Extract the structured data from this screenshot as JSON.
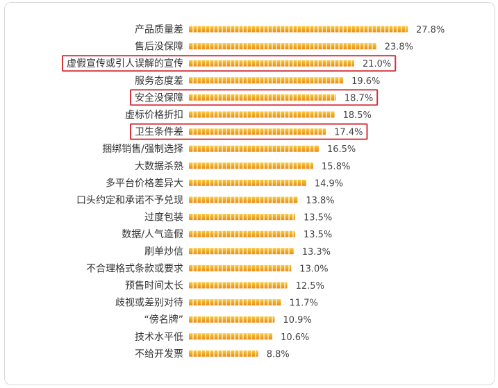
{
  "chart_data": {
    "type": "bar",
    "orientation": "horizontal",
    "title": "",
    "xlabel": "",
    "ylabel": "",
    "value_format": "percent",
    "xlim": [
      0,
      27.8
    ],
    "grid": false,
    "legend": "none",
    "categories": [
      "产品质量差",
      "售后没保障",
      "虚假宣传或引人误解的宣传",
      "服务态度差",
      "安全没保障",
      "虚标价格折扣",
      "卫生条件差",
      "捆绑销售/强制选择",
      "大数据杀熟",
      "多平台价格差异大",
      "口头约定和承诺不予兑现",
      "过度包装",
      "数据/人气造假",
      "刷单炒信",
      "不合理格式条款或要求",
      "预售时间太长",
      "歧视或差别对待",
      "“傍名牌”",
      "技术水平低",
      "不给开发票"
    ],
    "values": [
      27.8,
      23.8,
      21.0,
      19.6,
      18.7,
      18.5,
      17.4,
      16.5,
      15.8,
      14.9,
      13.8,
      13.5,
      13.5,
      13.3,
      13.0,
      12.5,
      11.7,
      10.9,
      10.6,
      8.8
    ],
    "value_labels": [
      "27.8%",
      "23.8%",
      "21.0%",
      "19.6%",
      "18.7%",
      "18.5%",
      "17.4%",
      "16.5%",
      "15.8%",
      "14.9%",
      "13.8%",
      "13.5%",
      "13.5%",
      "13.3%",
      "13.0%",
      "12.5%",
      "11.7%",
      "10.9%",
      "10.6%",
      "8.8%"
    ],
    "highlighted": [
      "虚假宣传或引人误解的宣传",
      "安全没保障",
      "卫生条件差"
    ]
  },
  "colors": {
    "bar_top": "#f7cc3e",
    "bar_bottom": "#ea8a16",
    "bar_divider": "#ffffff",
    "highlight_box": "#d4323c",
    "label_text": "#333333",
    "value_text": "#444444"
  }
}
